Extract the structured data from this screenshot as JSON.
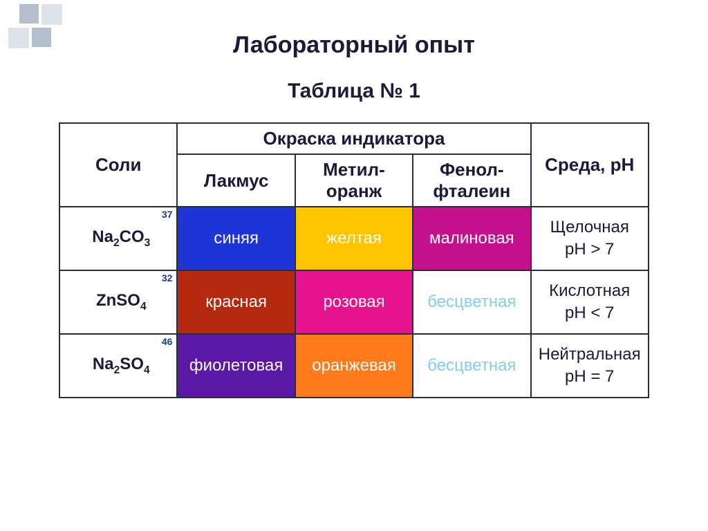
{
  "titles": {
    "main": "Лабораторный опыт",
    "sub": "Таблица № 1"
  },
  "headers": {
    "salts": "Соли",
    "indicator_group": "Окраска индикатора",
    "env": "Среда, pH",
    "lakmus": "Лакмус",
    "methyl": "Метил-оранж",
    "phenol": "Фенол-фталеин"
  },
  "rows": [
    {
      "salt_html": "Na<sub>2</sub>CO<sub>3</sub>",
      "note": "37",
      "lakmus": {
        "label": "синяя",
        "bg": "#1f36d6",
        "fg": "#ffffff"
      },
      "methyl": {
        "label": "желтая",
        "bg": "#ffc400",
        "fg": "#ffffff"
      },
      "phenol": {
        "label": "малиновая",
        "bg": "#c2138d",
        "fg": "#ffffff"
      },
      "env_line1": "Щелочная",
      "env_line2": "pH > 7"
    },
    {
      "salt_html": "ZnSO<sub>4</sub>",
      "note": "32",
      "lakmus": {
        "label": "красная",
        "bg": "#b52a0f",
        "fg": "#ffffff"
      },
      "methyl": {
        "label": "розовая",
        "bg": "#e6138f",
        "fg": "#ffffff"
      },
      "phenol": {
        "label": "бесцветная",
        "bg": "#ffffff",
        "fg": "#7fd1e6"
      },
      "env_line1": "Кислотная",
      "env_line2": "pH < 7"
    },
    {
      "salt_html": "Na<sub>2</sub>SO<sub>4</sub>",
      "note": "46",
      "lakmus": {
        "label": "фиолетовая",
        "bg": "#5a18a6",
        "fg": "#ffffff"
      },
      "methyl": {
        "label": "оранжевая",
        "bg": "#ff7a1a",
        "fg": "#ffffff"
      },
      "phenol": {
        "label": "бесцветная",
        "bg": "#ffffff",
        "fg": "#7fd1e6"
      },
      "env_line1": "Нейтральная",
      "env_line2": "pH = 7"
    }
  ],
  "style": {
    "border_color": "#2a2a40",
    "title_color": "#1a1a3a"
  }
}
